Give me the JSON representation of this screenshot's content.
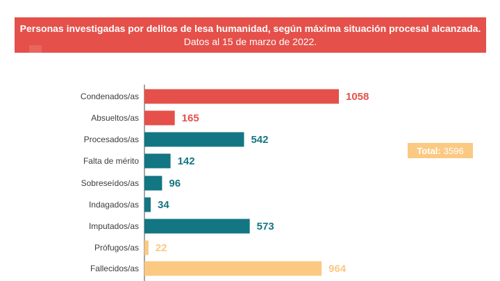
{
  "header": {
    "title_bold": "Personas investigadas por delitos de lesa humanidad, según máxima situación procesal alcanzada.",
    "title_regular": "Datos al 15 de marzo de 2022."
  },
  "total": {
    "label": "Total:",
    "value": "3596"
  },
  "colors": {
    "red": "#e5504a",
    "teal": "#137683",
    "yellow": "#fbc982"
  },
  "chart_data": {
    "type": "bar",
    "orientation": "horizontal",
    "categories": [
      "Condenados/as",
      "Absueltos/as",
      "Procesados/as",
      "Falta de mérito",
      "Sobreseídos/as",
      "Indagados/as",
      "Imputados/as",
      "Prófugos/as",
      "Fallecidos/as"
    ],
    "values": [
      1058,
      165,
      542,
      142,
      96,
      34,
      573,
      22,
      964
    ],
    "bar_colors": [
      "red",
      "red",
      "teal",
      "teal",
      "teal",
      "teal",
      "teal",
      "yellow",
      "yellow"
    ],
    "data_labels": [
      "1058",
      "165",
      "542",
      "142",
      "96",
      "34",
      "573",
      "22",
      "964"
    ],
    "title": "Personas investigadas por delitos de lesa humanidad, según máxima situación procesal alcanzada. Datos al 15 de marzo de 2022.",
    "xlim": [
      0,
      1058
    ]
  }
}
